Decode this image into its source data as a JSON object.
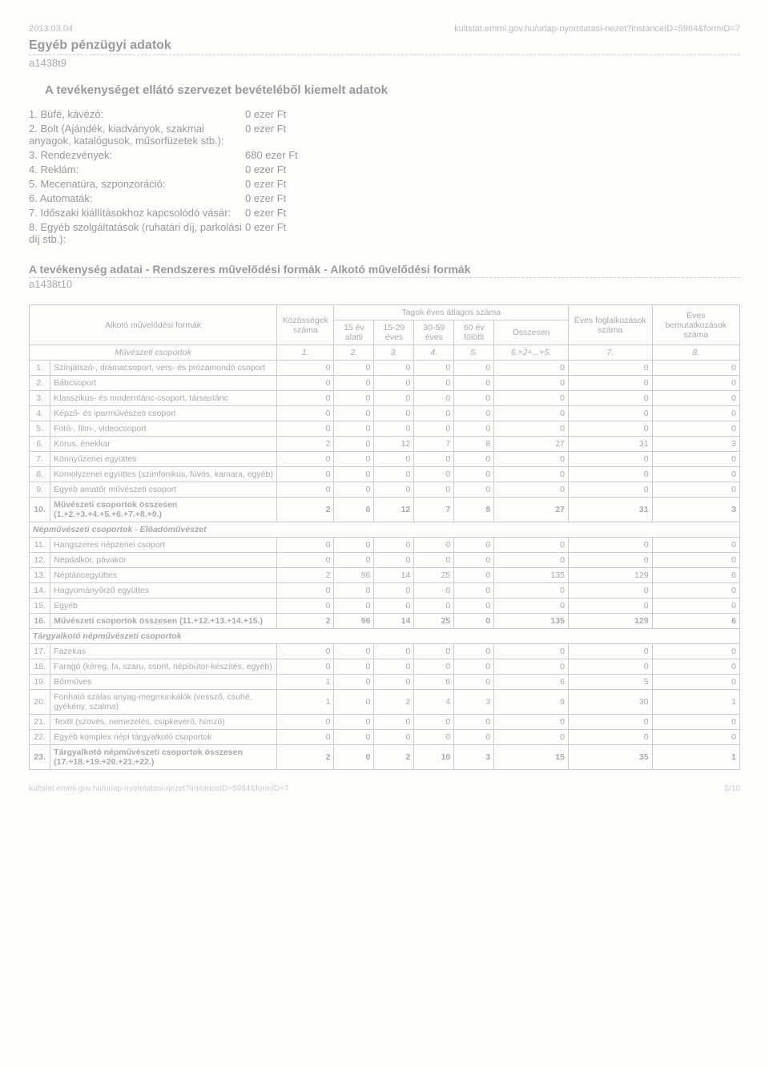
{
  "header": {
    "date": "2013.03.04",
    "url": "kultstat.emmi.gov.hu/urlap-nyomtatasi-nezet?instanceID=5964&formID=7"
  },
  "sectionA": {
    "title": "Egyéb pénzügyi adatok",
    "code": "a1438t9",
    "subtitle": "A tevékenységet ellátó szervezet bevételéből kiemelt adatok",
    "items": [
      {
        "n": "1.",
        "label": "Büfé, kávézó:",
        "value": "0 ezer Ft"
      },
      {
        "n": "2.",
        "label": "Bolt (Ajándék, kiadványok, szakmai anyagok, katalógusok, műsorfüzetek stb.):",
        "value": "0 ezer Ft"
      },
      {
        "n": "3.",
        "label": "Rendezvények:",
        "value": "680 ezer Ft"
      },
      {
        "n": "4.",
        "label": "Reklám:",
        "value": "0 ezer Ft"
      },
      {
        "n": "5.",
        "label": "Mecenatúra, szponzoráció:",
        "value": "0 ezer Ft"
      },
      {
        "n": "6.",
        "label": "Automaták:",
        "value": "0 ezer Ft"
      },
      {
        "n": "7.",
        "label": "Időszaki kiállításokhoz kapcsolódó vásár:",
        "value": "0 ezer Ft"
      },
      {
        "n": "8.",
        "label": "Egyéb szolgáltatások (ruhatári díj, parkolási díj stb.):",
        "value": "0 ezer Ft"
      }
    ]
  },
  "sectionB": {
    "title": "A tevékenység adatai - Rendszeres művelődési formák - Alkotó művelődési formák",
    "code": "a1438t10"
  },
  "table": {
    "headers": {
      "main": "Alkotó művelődési formák",
      "groups": "Közösségek száma",
      "avg": "Tagok éves átlagos száma",
      "c15": "15 év alatti",
      "c1529": "15-29 éves",
      "c3059": "30-59 éves",
      "c60": "60 év fölötti",
      "sum": "Összesen",
      "yearly1": "Éves foglalkozások száma",
      "yearly2": "Éves bemutatkozások száma",
      "idx_row_label": "Művészeti csoportok",
      "idx": [
        "1.",
        "2.",
        "3.",
        "4.",
        "5.",
        "6.=2+...+5.",
        "7.",
        "8."
      ]
    },
    "rows": [
      {
        "n": "1.",
        "name": "Színjátszó-, drámacsoport, vers- és prózamondó csoport",
        "v": [
          0,
          0,
          0,
          0,
          0,
          0,
          0,
          0
        ]
      },
      {
        "n": "2.",
        "name": "Bábcsoport",
        "v": [
          0,
          0,
          0,
          0,
          0,
          0,
          0,
          0
        ]
      },
      {
        "n": "3.",
        "name": "Klasszikus- és moderntánc-csoport, társastánc",
        "v": [
          0,
          0,
          0,
          0,
          0,
          0,
          0,
          0
        ]
      },
      {
        "n": "4.",
        "name": "Képző- és iparművészeti csoport",
        "v": [
          0,
          0,
          0,
          0,
          0,
          0,
          0,
          0
        ]
      },
      {
        "n": "5.",
        "name": "Fotó-, film-, videocsoport",
        "v": [
          0,
          0,
          0,
          0,
          0,
          0,
          0,
          0
        ]
      },
      {
        "n": "6.",
        "name": "Kórus, énekkar",
        "v": [
          2,
          0,
          12,
          7,
          8,
          27,
          31,
          3
        ]
      },
      {
        "n": "7.",
        "name": "Könnyűzenei együttes",
        "v": [
          0,
          0,
          0,
          0,
          0,
          0,
          0,
          0
        ]
      },
      {
        "n": "8.",
        "name": "Komolyzenei együttes (szimfonikus, fúvós, kamara, egyéb)",
        "v": [
          0,
          0,
          0,
          0,
          0,
          0,
          0,
          0
        ]
      },
      {
        "n": "9.",
        "name": "Egyéb amatőr művészeti csoport",
        "v": [
          0,
          0,
          0,
          0,
          0,
          0,
          0,
          0
        ]
      },
      {
        "n": "10.",
        "name": "Művészeti csoportok összesen (1.+2.+3.+4.+5.+6.+7.+8.+9.)",
        "v": [
          2,
          0,
          12,
          7,
          8,
          27,
          31,
          3
        ],
        "sum": true
      },
      {
        "sub": "Népművészeti csoportok - Előadóművészet"
      },
      {
        "n": "11.",
        "name": "Hangszeres népzenei csoport",
        "v": [
          0,
          0,
          0,
          0,
          0,
          0,
          0,
          0
        ]
      },
      {
        "n": "12.",
        "name": "Népdalkör, pávakör",
        "v": [
          0,
          0,
          0,
          0,
          0,
          0,
          0,
          0
        ]
      },
      {
        "n": "13.",
        "name": "Néptáncegyüttes",
        "v": [
          2,
          96,
          14,
          25,
          0,
          135,
          129,
          6
        ]
      },
      {
        "n": "14.",
        "name": "Hagyományőrző együttes",
        "v": [
          0,
          0,
          0,
          0,
          0,
          0,
          0,
          0
        ]
      },
      {
        "n": "15.",
        "name": "Egyéb",
        "v": [
          0,
          0,
          0,
          0,
          0,
          0,
          0,
          0
        ]
      },
      {
        "n": "16.",
        "name": "Művészeti csoportok összesen (11.+12.+13.+14.+15.)",
        "v": [
          2,
          96,
          14,
          25,
          0,
          135,
          129,
          6
        ],
        "sum": true
      },
      {
        "sub": "Tárgyalkotó népművészeti csoportok"
      },
      {
        "n": "17.",
        "name": "Fazekas",
        "v": [
          0,
          0,
          0,
          0,
          0,
          0,
          0,
          0
        ]
      },
      {
        "n": "18.",
        "name": "Faragó (kéreg, fa, szaru, csont, népibútor-készítés, egyéb)",
        "v": [
          0,
          0,
          0,
          0,
          0,
          0,
          0,
          0
        ]
      },
      {
        "n": "19.",
        "name": "Bőrműves",
        "v": [
          1,
          0,
          0,
          6,
          0,
          6,
          5,
          0
        ]
      },
      {
        "n": "20.",
        "name": "Fonható szálas anyag-megmunkálók (vessző, csuhé, gyékény, szalma)",
        "v": [
          1,
          0,
          2,
          4,
          3,
          9,
          30,
          1
        ]
      },
      {
        "n": "21.",
        "name": "Textil (szövés, nemezelés, csipkeverő, hímző)",
        "v": [
          0,
          0,
          0,
          0,
          0,
          0,
          0,
          0
        ]
      },
      {
        "n": "22.",
        "name": "Egyéb komplex népi tárgyalkotó csoportok",
        "v": [
          0,
          0,
          0,
          0,
          0,
          0,
          0,
          0
        ]
      },
      {
        "n": "23.",
        "name": "Tárgyalkotó népművészeti csoportok összesen (17.+18.+19.+20.+21.+22.)",
        "v": [
          2,
          0,
          2,
          10,
          3,
          15,
          35,
          1
        ],
        "sum": true
      }
    ]
  },
  "footer": {
    "url": "kultstat.emmi.gov.hu/urlap-nyomtatasi-nezet?instanceID=5964&formID=7",
    "page": "5/10"
  }
}
